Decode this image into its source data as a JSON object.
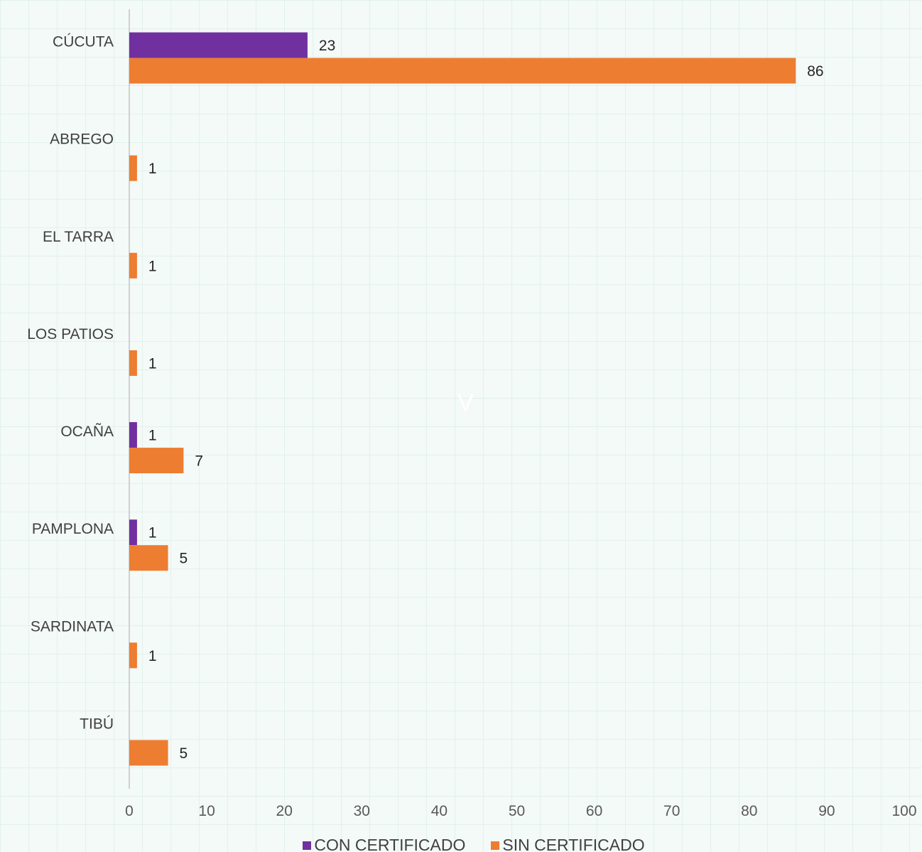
{
  "chart_data": {
    "type": "bar",
    "orientation": "horizontal",
    "categories": [
      "CÚCUTA",
      "ABREGO",
      "EL TARRA",
      "LOS PATIOS",
      "OCAÑA",
      "PAMPLONA",
      "SARDINATA",
      "TIBÚ"
    ],
    "series": [
      {
        "name": "CON CERTIFICADO",
        "color": "#7030a0",
        "values": [
          23,
          0,
          0,
          0,
          1,
          1,
          0,
          0
        ]
      },
      {
        "name": "SIN CERTIFICADO",
        "color": "#ed7d31",
        "values": [
          86,
          1,
          1,
          1,
          7,
          5,
          1,
          5
        ]
      }
    ],
    "xlim": [
      0,
      100
    ],
    "xticks": [
      0,
      10,
      20,
      30,
      40,
      50,
      60,
      70,
      80,
      90,
      100
    ],
    "legend_position": "bottom",
    "grid": false
  },
  "watermark": "V"
}
